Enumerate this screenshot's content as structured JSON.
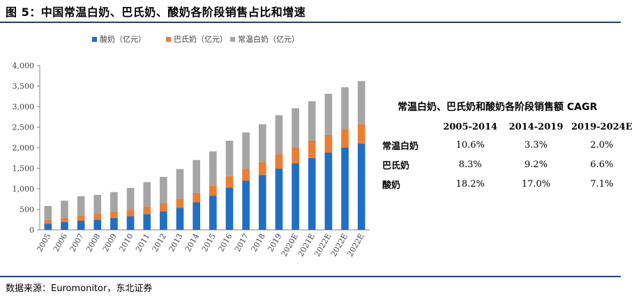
{
  "figure": {
    "title": "图 5：中国常温白奶、巴氏奶、酸奶各阶段销售占比和增速",
    "source": "数据来源：Euromonitor，东北证券"
  },
  "chart_data": {
    "type": "bar",
    "stacked": true,
    "categories": [
      "2005",
      "2006",
      "2007",
      "2008",
      "2009",
      "2010",
      "2011",
      "2012",
      "2013",
      "2014",
      "2015",
      "2016",
      "2017",
      "2018",
      "2019",
      "2020E",
      "2021E",
      "2022E",
      "2022E",
      "2022E"
    ],
    "series": [
      {
        "name": "酸奶（亿元）",
        "color": "#1f6fc5",
        "values": [
          150,
          190,
          220,
          250,
          290,
          330,
          380,
          450,
          540,
          670,
          830,
          1030,
          1200,
          1330,
          1490,
          1620,
          1750,
          1880,
          2000,
          2100
        ]
      },
      {
        "name": "巴氏奶（亿元）",
        "color": "#ed7d31",
        "values": [
          100,
          110,
          130,
          140,
          150,
          160,
          190,
          200,
          220,
          230,
          250,
          280,
          290,
          320,
          350,
          390,
          420,
          430,
          450,
          470
        ]
      },
      {
        "name": "常温白奶（亿元）",
        "color": "#a5a5a5",
        "values": [
          330,
          410,
          470,
          460,
          480,
          530,
          590,
          640,
          720,
          800,
          830,
          860,
          880,
          920,
          950,
          950,
          960,
          1000,
          1020,
          1050
        ]
      }
    ],
    "ylim": [
      0,
      4000
    ],
    "yticks": [
      "0",
      "500",
      "1,000",
      "1,500",
      "2,000",
      "2,500",
      "3,000",
      "3,500",
      "4,000"
    ],
    "ytick_values": [
      0,
      500,
      1000,
      1500,
      2000,
      2500,
      3000,
      3500,
      4000
    ],
    "legend_position": "top",
    "grid": false
  },
  "cagr_table": {
    "title": "常温白奶、巴氏奶和酸奶各阶段销售额 CAGR",
    "columns": [
      "2005-2014",
      "2014-2019",
      "2019-2024E"
    ],
    "rows": [
      {
        "label": "常温白奶",
        "values": [
          "10.6%",
          "3.3%",
          "2.0%"
        ]
      },
      {
        "label": "巴氏奶",
        "values": [
          "8.3%",
          "9.2%",
          "6.6%"
        ]
      },
      {
        "label": "酸奶",
        "values": [
          "18.2%",
          "17.0%",
          "7.1%"
        ]
      }
    ]
  }
}
